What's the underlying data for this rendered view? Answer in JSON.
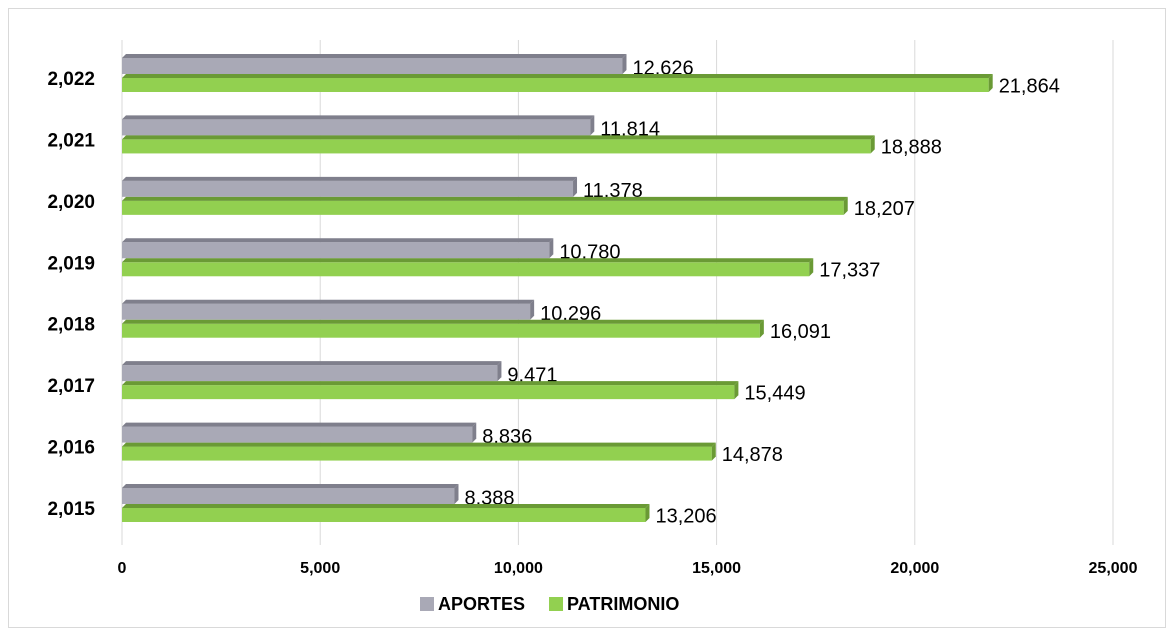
{
  "chart_data": {
    "type": "barh",
    "categories": [
      "2,015",
      "2,016",
      "2,017",
      "2,018",
      "2,019",
      "2,020",
      "2,021",
      "2,022"
    ],
    "series": [
      {
        "name": "APORTES",
        "color": "#a9a9b6",
        "values": [
          8388,
          8836,
          9471,
          10296,
          10780,
          11378,
          11814,
          12626
        ],
        "value_labels": [
          "8,388",
          "8,836",
          "9,471",
          "10,296",
          "10,780",
          "11,378",
          "11,814",
          "12,626"
        ]
      },
      {
        "name": "PATRIMONIO",
        "color": "#92d050",
        "values": [
          13206,
          14878,
          15449,
          16091,
          17337,
          18207,
          18888,
          21864
        ],
        "value_labels": [
          "13,206",
          "14,878",
          "15,449",
          "16,091",
          "17,337",
          "18,207",
          "18,888",
          "21,864"
        ]
      }
    ],
    "xlim": [
      0,
      25000
    ],
    "xticks": [
      0,
      {
        "value": 5000,
        "label": "5,000"
      },
      {
        "value": 10000,
        "label": "10,000"
      },
      {
        "value": 15000,
        "label": "15,000"
      },
      {
        "value": 20000,
        "label": "20,000"
      },
      {
        "value": 25000,
        "label": "25,000"
      }
    ],
    "grid": true,
    "legend": "bottom"
  }
}
